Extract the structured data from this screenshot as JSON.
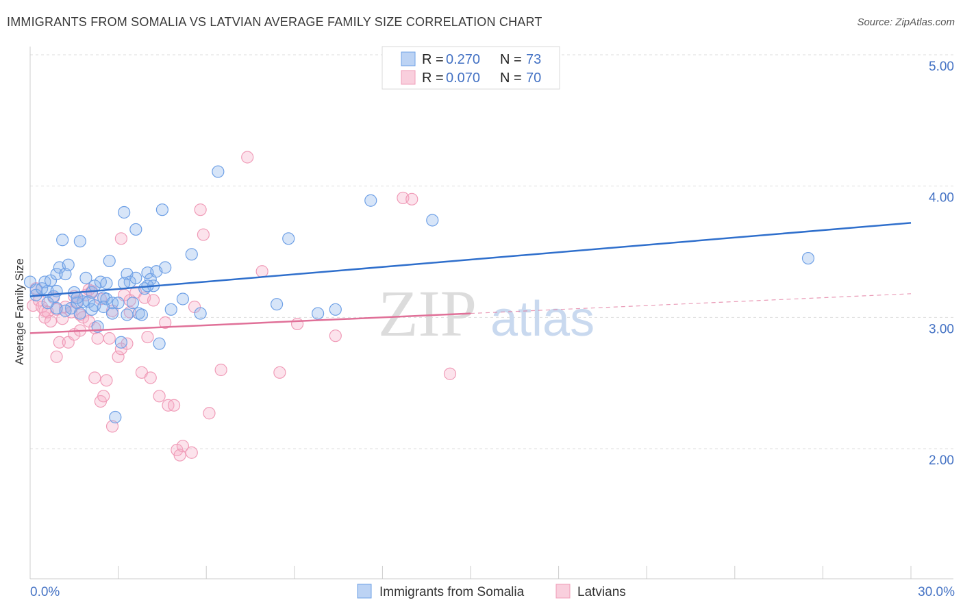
{
  "title": "IMMIGRANTS FROM SOMALIA VS LATVIAN AVERAGE FAMILY SIZE CORRELATION CHART",
  "source": "Source: ZipAtlas.com",
  "watermark": {
    "zip": "ZIP",
    "atlas": "atlas"
  },
  "legend_top": [
    {
      "r_label": "R =",
      "r_value": "0.270",
      "n_label": "N =",
      "n_value": "73"
    },
    {
      "r_label": "R =",
      "r_value": "0.070",
      "n_label": "N =",
      "n_value": "70"
    }
  ],
  "chart_data": {
    "type": "scatter",
    "title": "IMMIGRANTS FROM SOMALIA VS LATVIAN AVERAGE FAMILY SIZE CORRELATION CHART",
    "xlabel": "",
    "ylabel": "Average Family Size",
    "xlim": [
      0,
      30
    ],
    "ylim": [
      1.0,
      5.15
    ],
    "x_tick_labels": [
      "0.0%",
      "30.0%"
    ],
    "y_ticks": [
      2.0,
      3.0,
      4.0,
      5.0
    ],
    "y_tick_labels": [
      "2.00",
      "3.00",
      "4.00",
      "5.00"
    ],
    "grid": true,
    "legend_position": "top-center",
    "colors": {
      "somalia": "#6ea0e6",
      "latvians": "#f09cb8",
      "somalia_line": "#2f6fcc",
      "latvians_line": "#e07098",
      "tick": "#4472c4"
    },
    "series": [
      {
        "name": "Immigrants from Somalia",
        "r": 0.27,
        "n": 73,
        "trend": {
          "x": [
            0,
            30
          ],
          "y": [
            3.16,
            3.72
          ]
        },
        "points": [
          [
            0.0,
            3.27
          ],
          [
            0.2,
            3.21
          ],
          [
            0.2,
            3.17
          ],
          [
            0.4,
            3.22
          ],
          [
            0.5,
            3.27
          ],
          [
            0.6,
            3.2
          ],
          [
            0.7,
            3.28
          ],
          [
            0.8,
            3.16
          ],
          [
            0.9,
            3.07
          ],
          [
            0.9,
            3.33
          ],
          [
            1.0,
            3.38
          ],
          [
            1.1,
            3.59
          ],
          [
            1.2,
            3.33
          ],
          [
            1.3,
            3.4
          ],
          [
            1.4,
            3.07
          ],
          [
            1.5,
            3.19
          ],
          [
            1.6,
            3.11
          ],
          [
            1.7,
            3.03
          ],
          [
            1.7,
            3.58
          ],
          [
            1.8,
            3.12
          ],
          [
            1.9,
            3.3
          ],
          [
            2.0,
            3.12
          ],
          [
            2.1,
            3.19
          ],
          [
            2.1,
            3.06
          ],
          [
            2.2,
            3.24
          ],
          [
            2.3,
            2.93
          ],
          [
            2.4,
            3.27
          ],
          [
            2.5,
            3.15
          ],
          [
            2.6,
            3.14
          ],
          [
            2.6,
            3.26
          ],
          [
            2.7,
            3.43
          ],
          [
            2.8,
            3.11
          ],
          [
            2.8,
            3.03
          ],
          [
            2.9,
            2.24
          ],
          [
            3.0,
            3.11
          ],
          [
            3.1,
            2.81
          ],
          [
            3.2,
            3.8
          ],
          [
            3.3,
            3.33
          ],
          [
            3.3,
            3.02
          ],
          [
            3.4,
            3.27
          ],
          [
            3.5,
            3.11
          ],
          [
            3.6,
            3.67
          ],
          [
            3.7,
            3.03
          ],
          [
            3.8,
            3.02
          ],
          [
            3.9,
            3.22
          ],
          [
            4.0,
            3.34
          ],
          [
            4.1,
            3.29
          ],
          [
            4.2,
            3.24
          ],
          [
            4.3,
            3.35
          ],
          [
            4.4,
            2.8
          ],
          [
            4.5,
            3.82
          ],
          [
            4.6,
            3.38
          ],
          [
            4.8,
            3.06
          ],
          [
            5.2,
            3.14
          ],
          [
            5.5,
            3.48
          ],
          [
            5.8,
            3.03
          ],
          [
            6.4,
            4.11
          ],
          [
            8.4,
            3.1
          ],
          [
            8.8,
            3.6
          ],
          [
            9.8,
            3.03
          ],
          [
            10.4,
            3.06
          ],
          [
            11.6,
            3.89
          ],
          [
            13.7,
            3.74
          ],
          [
            26.5,
            3.45
          ],
          [
            3.2,
            3.26
          ],
          [
            2.2,
            3.09
          ],
          [
            1.6,
            3.15
          ],
          [
            0.6,
            3.11
          ],
          [
            2.5,
            3.08
          ],
          [
            4.0,
            3.24
          ],
          [
            1.2,
            3.05
          ],
          [
            0.9,
            3.2
          ],
          [
            3.6,
            3.3
          ]
        ]
      },
      {
        "name": "Latvians",
        "r": 0.07,
        "n": 70,
        "trend": {
          "x": [
            0,
            15
          ],
          "y": [
            2.88,
            3.03
          ]
        },
        "trend_dashed": {
          "x": [
            15,
            30
          ],
          "y": [
            3.03,
            3.18
          ]
        },
        "points": [
          [
            0.1,
            3.09
          ],
          [
            0.2,
            3.22
          ],
          [
            0.3,
            3.13
          ],
          [
            0.4,
            3.08
          ],
          [
            0.5,
            3.05
          ],
          [
            0.5,
            3.0
          ],
          [
            0.6,
            3.04
          ],
          [
            0.7,
            2.97
          ],
          [
            0.8,
            3.15
          ],
          [
            0.9,
            3.06
          ],
          [
            0.9,
            2.7
          ],
          [
            1.0,
            2.81
          ],
          [
            1.1,
            2.99
          ],
          [
            1.2,
            3.08
          ],
          [
            1.3,
            2.81
          ],
          [
            1.4,
            3.04
          ],
          [
            1.5,
            2.87
          ],
          [
            1.6,
            3.12
          ],
          [
            1.7,
            3.02
          ],
          [
            1.7,
            2.9
          ],
          [
            1.8,
            3.0
          ],
          [
            1.9,
            3.17
          ],
          [
            2.0,
            3.21
          ],
          [
            2.1,
            3.2
          ],
          [
            2.2,
            2.92
          ],
          [
            2.2,
            2.54
          ],
          [
            2.3,
            2.84
          ],
          [
            2.4,
            3.14
          ],
          [
            2.4,
            2.36
          ],
          [
            2.5,
            2.4
          ],
          [
            2.6,
            2.52
          ],
          [
            2.7,
            2.84
          ],
          [
            2.8,
            3.05
          ],
          [
            2.8,
            2.17
          ],
          [
            3.0,
            2.7
          ],
          [
            3.1,
            2.76
          ],
          [
            3.1,
            3.6
          ],
          [
            3.2,
            3.17
          ],
          [
            3.3,
            2.8
          ],
          [
            3.4,
            3.13
          ],
          [
            3.6,
            3.19
          ],
          [
            3.8,
            2.58
          ],
          [
            3.9,
            3.15
          ],
          [
            4.0,
            2.85
          ],
          [
            4.1,
            2.54
          ],
          [
            4.2,
            3.13
          ],
          [
            4.4,
            2.4
          ],
          [
            4.6,
            2.96
          ],
          [
            4.7,
            2.33
          ],
          [
            4.9,
            2.33
          ],
          [
            5.0,
            1.99
          ],
          [
            5.1,
            1.95
          ],
          [
            5.2,
            2.02
          ],
          [
            5.5,
            1.97
          ],
          [
            5.6,
            3.08
          ],
          [
            5.8,
            3.82
          ],
          [
            5.9,
            3.63
          ],
          [
            6.1,
            2.27
          ],
          [
            6.5,
            2.6
          ],
          [
            7.4,
            4.22
          ],
          [
            7.9,
            3.35
          ],
          [
            8.5,
            2.58
          ],
          [
            9.1,
            2.95
          ],
          [
            10.4,
            2.86
          ],
          [
            12.7,
            3.91
          ],
          [
            13.0,
            3.9
          ],
          [
            14.3,
            2.57
          ],
          [
            1.5,
            3.16
          ],
          [
            3.4,
            3.04
          ],
          [
            2.0,
            2.97
          ]
        ]
      }
    ]
  },
  "bottom_legend": [
    {
      "label": "Immigrants from Somalia"
    },
    {
      "label": "Latvians"
    }
  ]
}
